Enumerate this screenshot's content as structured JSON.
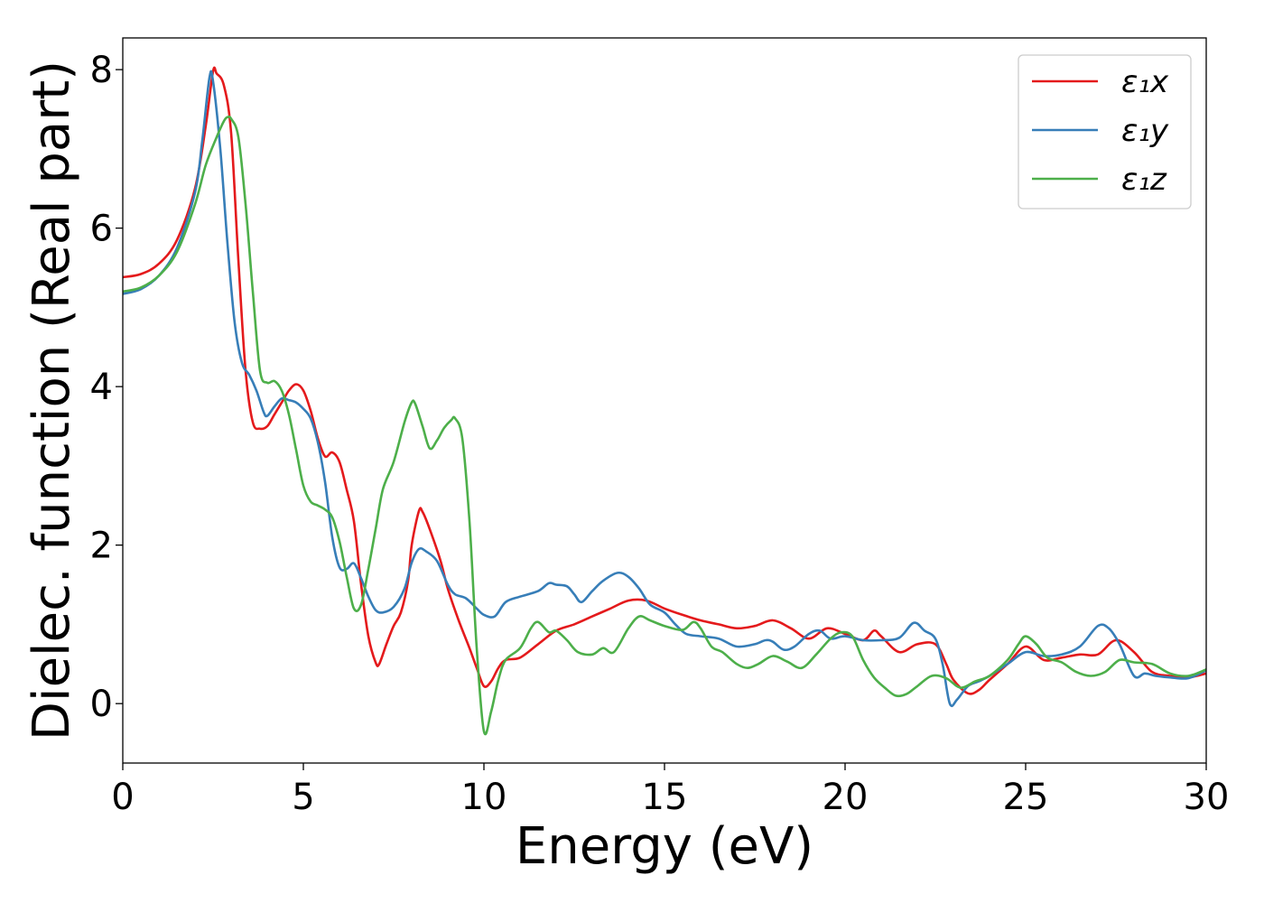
{
  "chart_data": {
    "type": "line",
    "title": "",
    "xlabel": "Energy (eV)",
    "ylabel": "Dielec. function (Real part)",
    "xlim": [
      0,
      30
    ],
    "ylim": [
      -0.75,
      8.4
    ],
    "xticks": [
      0,
      5,
      10,
      15,
      20,
      25,
      30
    ],
    "yticks": [
      0,
      2,
      4,
      6,
      8
    ],
    "grid": false,
    "legend_position": "top-right",
    "series": [
      {
        "name": "ε₁x",
        "color": "#e41a1c",
        "points": [
          [
            0,
            5.38
          ],
          [
            0.5,
            5.42
          ],
          [
            1.0,
            5.55
          ],
          [
            1.5,
            5.85
          ],
          [
            2.0,
            6.5
          ],
          [
            2.3,
            7.3
          ],
          [
            2.5,
            7.98
          ],
          [
            2.6,
            7.95
          ],
          [
            2.8,
            7.8
          ],
          [
            3.0,
            7.2
          ],
          [
            3.2,
            5.6
          ],
          [
            3.4,
            4.2
          ],
          [
            3.6,
            3.55
          ],
          [
            3.8,
            3.47
          ],
          [
            4.0,
            3.5
          ],
          [
            4.2,
            3.65
          ],
          [
            4.4,
            3.8
          ],
          [
            4.6,
            3.95
          ],
          [
            4.8,
            4.03
          ],
          [
            5.0,
            3.95
          ],
          [
            5.2,
            3.7
          ],
          [
            5.4,
            3.35
          ],
          [
            5.6,
            3.12
          ],
          [
            5.8,
            3.17
          ],
          [
            6.0,
            3.05
          ],
          [
            6.2,
            2.7
          ],
          [
            6.4,
            2.3
          ],
          [
            6.6,
            1.5
          ],
          [
            6.8,
            0.85
          ],
          [
            7.0,
            0.52
          ],
          [
            7.1,
            0.5
          ],
          [
            7.3,
            0.75
          ],
          [
            7.5,
            0.98
          ],
          [
            7.7,
            1.15
          ],
          [
            7.9,
            1.55
          ],
          [
            8.0,
            2.0
          ],
          [
            8.2,
            2.43
          ],
          [
            8.3,
            2.42
          ],
          [
            8.5,
            2.2
          ],
          [
            8.8,
            1.8
          ],
          [
            9.0,
            1.45
          ],
          [
            9.3,
            1.05
          ],
          [
            9.6,
            0.7
          ],
          [
            9.8,
            0.45
          ],
          [
            10.0,
            0.22
          ],
          [
            10.2,
            0.28
          ],
          [
            10.4,
            0.45
          ],
          [
            10.6,
            0.55
          ],
          [
            11.0,
            0.58
          ],
          [
            11.5,
            0.75
          ],
          [
            12.0,
            0.92
          ],
          [
            12.5,
            1.0
          ],
          [
            13.0,
            1.1
          ],
          [
            13.5,
            1.2
          ],
          [
            14.0,
            1.3
          ],
          [
            14.5,
            1.3
          ],
          [
            15.0,
            1.2
          ],
          [
            15.5,
            1.12
          ],
          [
            16.0,
            1.05
          ],
          [
            16.5,
            1.0
          ],
          [
            17.0,
            0.95
          ],
          [
            17.5,
            0.98
          ],
          [
            18.0,
            1.05
          ],
          [
            18.5,
            0.95
          ],
          [
            19.0,
            0.82
          ],
          [
            19.5,
            0.95
          ],
          [
            20.0,
            0.88
          ],
          [
            20.5,
            0.8
          ],
          [
            20.8,
            0.92
          ],
          [
            21.0,
            0.85
          ],
          [
            21.5,
            0.65
          ],
          [
            22.0,
            0.75
          ],
          [
            22.5,
            0.75
          ],
          [
            22.8,
            0.5
          ],
          [
            23.0,
            0.3
          ],
          [
            23.4,
            0.13
          ],
          [
            23.7,
            0.17
          ],
          [
            24.0,
            0.3
          ],
          [
            24.5,
            0.5
          ],
          [
            25.0,
            0.72
          ],
          [
            25.5,
            0.55
          ],
          [
            26.0,
            0.58
          ],
          [
            26.5,
            0.62
          ],
          [
            27.0,
            0.62
          ],
          [
            27.5,
            0.8
          ],
          [
            28.0,
            0.65
          ],
          [
            28.5,
            0.4
          ],
          [
            29.0,
            0.35
          ],
          [
            29.5,
            0.33
          ],
          [
            30.0,
            0.38
          ]
        ]
      },
      {
        "name": "ε₁y",
        "color": "#377eb8",
        "points": [
          [
            0,
            5.17
          ],
          [
            0.5,
            5.23
          ],
          [
            1.0,
            5.4
          ],
          [
            1.5,
            5.75
          ],
          [
            2.0,
            6.45
          ],
          [
            2.2,
            7.1
          ],
          [
            2.4,
            7.9
          ],
          [
            2.5,
            7.85
          ],
          [
            2.7,
            7.0
          ],
          [
            2.9,
            5.8
          ],
          [
            3.1,
            4.8
          ],
          [
            3.3,
            4.3
          ],
          [
            3.5,
            4.15
          ],
          [
            3.7,
            3.95
          ],
          [
            3.9,
            3.68
          ],
          [
            4.0,
            3.63
          ],
          [
            4.2,
            3.75
          ],
          [
            4.4,
            3.85
          ],
          [
            4.6,
            3.83
          ],
          [
            4.8,
            3.8
          ],
          [
            5.0,
            3.72
          ],
          [
            5.2,
            3.6
          ],
          [
            5.4,
            3.3
          ],
          [
            5.6,
            2.8
          ],
          [
            5.8,
            2.1
          ],
          [
            6.0,
            1.72
          ],
          [
            6.2,
            1.7
          ],
          [
            6.4,
            1.77
          ],
          [
            6.6,
            1.58
          ],
          [
            6.8,
            1.35
          ],
          [
            7.0,
            1.18
          ],
          [
            7.2,
            1.15
          ],
          [
            7.5,
            1.22
          ],
          [
            7.8,
            1.45
          ],
          [
            8.0,
            1.78
          ],
          [
            8.2,
            1.95
          ],
          [
            8.4,
            1.92
          ],
          [
            8.7,
            1.8
          ],
          [
            9.0,
            1.5
          ],
          [
            9.2,
            1.38
          ],
          [
            9.5,
            1.33
          ],
          [
            9.8,
            1.2
          ],
          [
            10.0,
            1.12
          ],
          [
            10.3,
            1.1
          ],
          [
            10.6,
            1.28
          ],
          [
            11.0,
            1.35
          ],
          [
            11.5,
            1.42
          ],
          [
            11.8,
            1.52
          ],
          [
            12.0,
            1.5
          ],
          [
            12.3,
            1.48
          ],
          [
            12.5,
            1.38
          ],
          [
            12.7,
            1.28
          ],
          [
            13.0,
            1.42
          ],
          [
            13.3,
            1.55
          ],
          [
            13.7,
            1.65
          ],
          [
            14.0,
            1.6
          ],
          [
            14.3,
            1.45
          ],
          [
            14.6,
            1.25
          ],
          [
            15.0,
            1.15
          ],
          [
            15.3,
            1.0
          ],
          [
            15.6,
            0.88
          ],
          [
            16.0,
            0.85
          ],
          [
            16.5,
            0.82
          ],
          [
            17.0,
            0.72
          ],
          [
            17.5,
            0.75
          ],
          [
            17.8,
            0.8
          ],
          [
            18.0,
            0.78
          ],
          [
            18.3,
            0.68
          ],
          [
            18.6,
            0.72
          ],
          [
            19.0,
            0.88
          ],
          [
            19.3,
            0.92
          ],
          [
            19.6,
            0.82
          ],
          [
            20.0,
            0.85
          ],
          [
            20.5,
            0.8
          ],
          [
            21.0,
            0.8
          ],
          [
            21.5,
            0.83
          ],
          [
            21.9,
            1.02
          ],
          [
            22.2,
            0.92
          ],
          [
            22.5,
            0.82
          ],
          [
            22.7,
            0.5
          ],
          [
            22.9,
            0.0
          ],
          [
            23.1,
            0.05
          ],
          [
            23.4,
            0.22
          ],
          [
            23.7,
            0.28
          ],
          [
            24.0,
            0.35
          ],
          [
            24.5,
            0.5
          ],
          [
            25.0,
            0.65
          ],
          [
            25.5,
            0.6
          ],
          [
            26.0,
            0.62
          ],
          [
            26.5,
            0.72
          ],
          [
            27.0,
            0.98
          ],
          [
            27.3,
            0.95
          ],
          [
            27.6,
            0.75
          ],
          [
            28.0,
            0.35
          ],
          [
            28.3,
            0.38
          ],
          [
            28.6,
            0.35
          ],
          [
            29.0,
            0.33
          ],
          [
            29.5,
            0.32
          ],
          [
            30.0,
            0.42
          ]
        ]
      },
      {
        "name": "ε₁z",
        "color": "#4daf4a",
        "points": [
          [
            0,
            5.2
          ],
          [
            0.5,
            5.25
          ],
          [
            1.0,
            5.4
          ],
          [
            1.5,
            5.7
          ],
          [
            2.0,
            6.3
          ],
          [
            2.3,
            6.8
          ],
          [
            2.6,
            7.15
          ],
          [
            2.8,
            7.35
          ],
          [
            2.9,
            7.4
          ],
          [
            3.0,
            7.38
          ],
          [
            3.2,
            7.15
          ],
          [
            3.4,
            6.3
          ],
          [
            3.6,
            5.2
          ],
          [
            3.8,
            4.2
          ],
          [
            4.0,
            4.05
          ],
          [
            4.2,
            4.07
          ],
          [
            4.4,
            3.95
          ],
          [
            4.6,
            3.65
          ],
          [
            4.8,
            3.2
          ],
          [
            5.0,
            2.75
          ],
          [
            5.2,
            2.55
          ],
          [
            5.4,
            2.5
          ],
          [
            5.6,
            2.45
          ],
          [
            5.8,
            2.35
          ],
          [
            6.0,
            2.05
          ],
          [
            6.2,
            1.6
          ],
          [
            6.4,
            1.2
          ],
          [
            6.6,
            1.25
          ],
          [
            6.8,
            1.7
          ],
          [
            7.0,
            2.2
          ],
          [
            7.2,
            2.7
          ],
          [
            7.5,
            3.05
          ],
          [
            7.8,
            3.55
          ],
          [
            8.0,
            3.8
          ],
          [
            8.1,
            3.78
          ],
          [
            8.3,
            3.5
          ],
          [
            8.5,
            3.22
          ],
          [
            8.7,
            3.32
          ],
          [
            8.9,
            3.48
          ],
          [
            9.1,
            3.58
          ],
          [
            9.2,
            3.6
          ],
          [
            9.4,
            3.35
          ],
          [
            9.6,
            2.3
          ],
          [
            9.8,
            0.7
          ],
          [
            10.0,
            -0.35
          ],
          [
            10.2,
            -0.1
          ],
          [
            10.4,
            0.3
          ],
          [
            10.6,
            0.55
          ],
          [
            11.0,
            0.7
          ],
          [
            11.3,
            0.95
          ],
          [
            11.5,
            1.03
          ],
          [
            11.8,
            0.9
          ],
          [
            12.0,
            0.92
          ],
          [
            12.3,
            0.8
          ],
          [
            12.6,
            0.65
          ],
          [
            13.0,
            0.62
          ],
          [
            13.3,
            0.7
          ],
          [
            13.6,
            0.65
          ],
          [
            14.0,
            0.95
          ],
          [
            14.3,
            1.1
          ],
          [
            14.6,
            1.05
          ],
          [
            15.0,
            0.98
          ],
          [
            15.5,
            0.93
          ],
          [
            15.8,
            1.03
          ],
          [
            16.0,
            0.95
          ],
          [
            16.3,
            0.72
          ],
          [
            16.6,
            0.65
          ],
          [
            17.0,
            0.5
          ],
          [
            17.3,
            0.45
          ],
          [
            17.6,
            0.5
          ],
          [
            18.0,
            0.6
          ],
          [
            18.4,
            0.53
          ],
          [
            18.8,
            0.45
          ],
          [
            19.2,
            0.62
          ],
          [
            19.6,
            0.82
          ],
          [
            19.9,
            0.9
          ],
          [
            20.2,
            0.85
          ],
          [
            20.5,
            0.55
          ],
          [
            20.8,
            0.33
          ],
          [
            21.1,
            0.2
          ],
          [
            21.4,
            0.1
          ],
          [
            21.7,
            0.12
          ],
          [
            22.0,
            0.22
          ],
          [
            22.4,
            0.35
          ],
          [
            22.8,
            0.32
          ],
          [
            23.2,
            0.2
          ],
          [
            23.6,
            0.28
          ],
          [
            24.0,
            0.35
          ],
          [
            24.5,
            0.55
          ],
          [
            24.8,
            0.75
          ],
          [
            25.0,
            0.85
          ],
          [
            25.3,
            0.75
          ],
          [
            25.6,
            0.58
          ],
          [
            26.0,
            0.52
          ],
          [
            26.4,
            0.4
          ],
          [
            26.8,
            0.35
          ],
          [
            27.2,
            0.4
          ],
          [
            27.6,
            0.55
          ],
          [
            28.0,
            0.52
          ],
          [
            28.5,
            0.5
          ],
          [
            29.0,
            0.38
          ],
          [
            29.5,
            0.35
          ],
          [
            30.0,
            0.43
          ]
        ]
      }
    ]
  }
}
